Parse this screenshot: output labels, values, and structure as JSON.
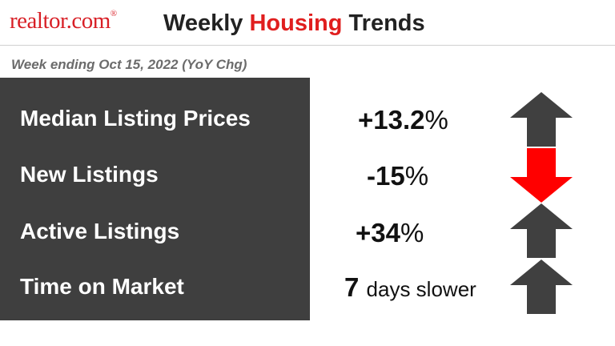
{
  "header": {
    "logo_text": "realtor.com",
    "logo_mark": "®",
    "title_part1": "Weekly",
    "title_highlight": "Housing",
    "title_part2": "Trends"
  },
  "subtitle": "Week ending Oct 15, 2022 (YoY Chg)",
  "metrics": [
    {
      "label": "Median Listing Prices",
      "value": "+13.2",
      "unit": "%",
      "direction": "up",
      "arrow_color": "#404040"
    },
    {
      "label": "New Listings",
      "value": "-15",
      "unit": "%",
      "direction": "down",
      "arrow_color": "#ff0000"
    },
    {
      "label": "Active Listings",
      "value": "+34",
      "unit": "%",
      "direction": "up",
      "arrow_color": "#404040"
    },
    {
      "label": "Time on Market",
      "value": "7",
      "unit": "days slower",
      "direction": "up",
      "arrow_color": "#404040"
    }
  ],
  "colors": {
    "panel": "#3f3f3f",
    "brand_red": "#d81f26",
    "highlight_red": "#e01e1e"
  }
}
